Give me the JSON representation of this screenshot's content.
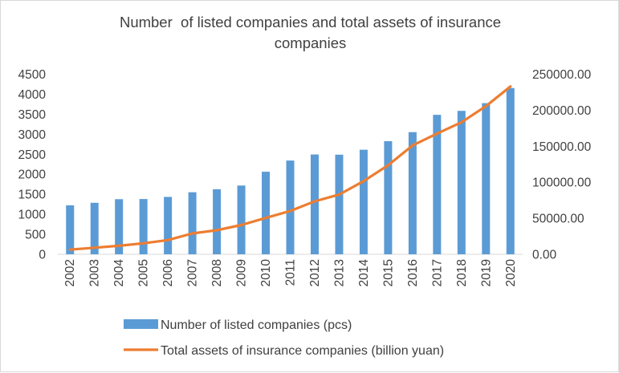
{
  "chart_data": {
    "type": "bar+line",
    "title_lines": [
      "Number  of listed companies and total assets of insurance",
      "companies"
    ],
    "categories": [
      "2002",
      "2003",
      "2004",
      "2005",
      "2006",
      "2007",
      "2008",
      "2009",
      "2010",
      "2011",
      "2012",
      "2013",
      "2014",
      "2015",
      "2016",
      "2017",
      "2018",
      "2019",
      "2020"
    ],
    "series": [
      {
        "name": "Number of listed companies (pcs)",
        "type": "bar",
        "axis": "left",
        "color": "#5b9bd5",
        "values": [
          1224,
          1287,
          1377,
          1381,
          1434,
          1550,
          1625,
          1718,
          2063,
          2342,
          2494,
          2489,
          2613,
          2827,
          3052,
          3485,
          3584,
          3777,
          4154
        ]
      },
      {
        "name": "Total assets of insurance companies (billion yuan)",
        "type": "line",
        "axis": "right",
        "color": "#ed7d31",
        "values": [
          6494,
          9123,
          11854,
          15286,
          19731,
          29004,
          33418,
          40635,
          50482,
          60138,
          73546,
          82887,
          101591,
          123598,
          151169,
          167489,
          183309,
          205645,
          233000
        ]
      }
    ],
    "y_left": {
      "min": 0,
      "max": 4500,
      "step": 500,
      "ticks": [
        "0",
        "500",
        "1000",
        "1500",
        "2000",
        "2500",
        "3000",
        "3500",
        "4000",
        "4500"
      ]
    },
    "y_right": {
      "min": 0,
      "max": 250000,
      "step": 50000,
      "ticks": [
        "0.00",
        "50000.00",
        "100000.00",
        "150000.00",
        "200000.00",
        "250000.00"
      ]
    },
    "grid": false,
    "legend_position": "bottom"
  }
}
